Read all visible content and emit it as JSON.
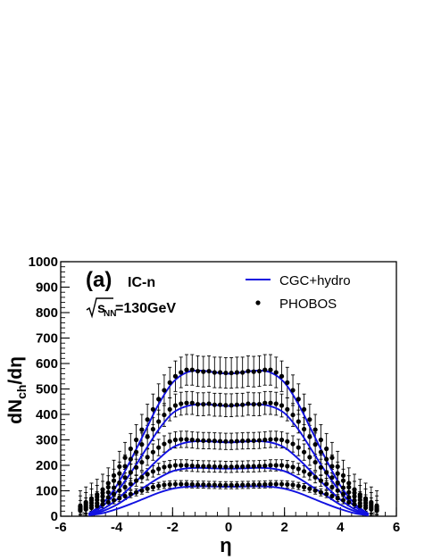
{
  "chart_data": {
    "type": "line",
    "xlabel": "η",
    "ylabel_main": "dN",
    "ylabel_sub": "ch",
    "ylabel_tail": "/dη",
    "xlim": [
      -6,
      6
    ],
    "ylim": [
      0,
      1000
    ],
    "x_ticks": [
      -6,
      -4,
      -2,
      0,
      2,
      4,
      6
    ],
    "x_tick_labels": [
      "-6",
      "-4",
      "-2",
      "0",
      "2",
      "4",
      "6"
    ],
    "y_ticks": [
      0,
      100,
      200,
      300,
      400,
      500,
      600,
      700,
      800,
      900,
      1000
    ],
    "y_tick_labels": [
      "0",
      "100",
      "200",
      "300",
      "400",
      "500",
      "600",
      "700",
      "800",
      "900",
      "1000"
    ],
    "panel_label": "(a)",
    "ic_label": "IC-n",
    "energy_label": {
      "s": "s",
      "sub": "NN",
      "value": "=130GeV"
    },
    "legend": {
      "position": "top-right",
      "items": [
        {
          "name": "CGC+hydro",
          "kind": "line",
          "color": "#1010e0"
        },
        {
          "name": "PHOBOS",
          "kind": "marker",
          "color": "#000000"
        }
      ]
    },
    "series": [
      {
        "name": "CGC+hydro",
        "centrality_index": 0,
        "eta": [
          -5.0,
          -4.5,
          -4.0,
          -3.5,
          -3.0,
          -2.5,
          -2.0,
          -1.5,
          -1.0,
          -0.5,
          0.0,
          0.5,
          1.0,
          1.5,
          2.0,
          2.5,
          3.0,
          3.5,
          4.0,
          4.5,
          5.0
        ],
        "values": [
          10,
          50,
          120,
          220,
          330,
          440,
          525,
          565,
          572,
          565,
          560,
          565,
          572,
          565,
          525,
          440,
          330,
          220,
          120,
          50,
          10
        ]
      },
      {
        "name": "CGC+hydro",
        "centrality_index": 1,
        "eta": [
          -5.0,
          -4.5,
          -4.0,
          -3.5,
          -3.0,
          -2.5,
          -2.0,
          -1.5,
          -1.0,
          -0.5,
          0.0,
          0.5,
          1.0,
          1.5,
          2.0,
          2.5,
          3.0,
          3.5,
          4.0,
          4.5,
          5.0
        ],
        "values": [
          8,
          40,
          95,
          170,
          255,
          340,
          405,
          432,
          440,
          437,
          433,
          437,
          440,
          432,
          405,
          340,
          255,
          170,
          95,
          40,
          8
        ]
      },
      {
        "name": "CGC+hydro",
        "centrality_index": 2,
        "eta": [
          -5.0,
          -4.5,
          -4.0,
          -3.5,
          -3.0,
          -2.5,
          -2.0,
          -1.5,
          -1.0,
          -0.5,
          0.0,
          0.5,
          1.0,
          1.5,
          2.0,
          2.5,
          3.0,
          3.5,
          4.0,
          4.5,
          5.0
        ],
        "values": [
          6,
          28,
          65,
          115,
          170,
          225,
          270,
          290,
          295,
          293,
          290,
          293,
          295,
          290,
          270,
          225,
          170,
          115,
          65,
          28,
          6
        ]
      },
      {
        "name": "CGC+hydro",
        "centrality_index": 3,
        "eta": [
          -5.0,
          -4.5,
          -4.0,
          -3.5,
          -3.0,
          -2.5,
          -2.0,
          -1.5,
          -1.0,
          -0.5,
          0.0,
          0.5,
          1.0,
          1.5,
          2.0,
          2.5,
          3.0,
          3.5,
          4.0,
          4.5,
          5.0
        ],
        "values": [
          4,
          20,
          45,
          80,
          115,
          150,
          177,
          188,
          190,
          188,
          187,
          188,
          190,
          188,
          177,
          150,
          115,
          80,
          45,
          20,
          4
        ]
      },
      {
        "name": "CGC+hydro",
        "centrality_index": 4,
        "eta": [
          -5.0,
          -4.5,
          -4.0,
          -3.5,
          -3.0,
          -2.5,
          -2.0,
          -1.5,
          -1.0,
          -0.5,
          0.0,
          0.5,
          1.0,
          1.5,
          2.0,
          2.5,
          3.0,
          3.5,
          4.0,
          4.5,
          5.0
        ],
        "values": [
          3,
          12,
          28,
          48,
          70,
          92,
          108,
          116,
          118,
          117,
          116,
          117,
          118,
          116,
          108,
          92,
          70,
          48,
          28,
          12,
          3
        ]
      }
    ],
    "phobos": {
      "eta": [
        -5.3,
        -5.1,
        -4.9,
        -4.7,
        -4.5,
        -4.3,
        -4.1,
        -3.9,
        -3.7,
        -3.5,
        -3.3,
        -3.1,
        -2.9,
        -2.7,
        -2.5,
        -2.3,
        -2.1,
        -1.9,
        -1.7,
        -1.5,
        -1.3,
        -1.1,
        -0.9,
        -0.7,
        -0.5,
        -0.3,
        -0.1,
        0.1,
        0.3,
        0.5,
        0.7,
        0.9,
        1.1,
        1.3,
        1.5,
        1.7,
        1.9,
        2.1,
        2.3,
        2.5,
        2.7,
        2.9,
        3.1,
        3.3,
        3.5,
        3.7,
        3.9,
        4.1,
        4.3,
        4.5,
        4.7,
        4.9,
        5.1,
        5.3
      ],
      "sets": [
        {
          "values": [
            40,
            55,
            70,
            85,
            105,
            130,
            160,
            195,
            230,
            265,
            300,
            340,
            380,
            420,
            460,
            495,
            525,
            550,
            565,
            575,
            575,
            570,
            568,
            570,
            565,
            565,
            563,
            563,
            565,
            565,
            570,
            568,
            570,
            575,
            575,
            565,
            550,
            525,
            495,
            460,
            420,
            380,
            340,
            300,
            265,
            230,
            195,
            160,
            130,
            105,
            85,
            70,
            55,
            40
          ],
          "err": 60
        },
        {
          "values": [
            35,
            48,
            62,
            76,
            92,
            114,
            140,
            168,
            196,
            224,
            252,
            282,
            312,
            342,
            372,
            398,
            420,
            435,
            442,
            445,
            445,
            440,
            440,
            442,
            438,
            438,
            436,
            436,
            438,
            438,
            442,
            440,
            440,
            445,
            445,
            442,
            435,
            420,
            398,
            372,
            342,
            312,
            282,
            252,
            224,
            196,
            168,
            140,
            114,
            92,
            76,
            62,
            48,
            35
          ],
          "err": 45
        },
        {
          "values": [
            30,
            40,
            52,
            64,
            78,
            94,
            112,
            132,
            152,
            172,
            192,
            212,
            232,
            252,
            270,
            284,
            294,
            300,
            302,
            302,
            300,
            298,
            297,
            297,
            296,
            295,
            294,
            294,
            295,
            296,
            297,
            297,
            298,
            300,
            302,
            302,
            300,
            294,
            284,
            270,
            252,
            232,
            212,
            192,
            172,
            152,
            132,
            112,
            94,
            78,
            64,
            52,
            40,
            30
          ],
          "err": 32
        },
        {
          "values": [
            26,
            33,
            42,
            51,
            62,
            74,
            87,
            101,
            114,
            127,
            140,
            153,
            165,
            176,
            186,
            193,
            197,
            200,
            200,
            200,
            198,
            197,
            196,
            196,
            195,
            195,
            194,
            194,
            195,
            195,
            196,
            196,
            197,
            198,
            200,
            200,
            200,
            197,
            193,
            186,
            176,
            165,
            153,
            140,
            127,
            114,
            101,
            87,
            74,
            62,
            51,
            42,
            33,
            26
          ],
          "err": 22
        },
        {
          "values": [
            22,
            27,
            33,
            40,
            47,
            55,
            63,
            71,
            79,
            87,
            94,
            101,
            108,
            114,
            119,
            123,
            125,
            126,
            126,
            126,
            125,
            124,
            124,
            123,
            123,
            122,
            122,
            122,
            122,
            123,
            123,
            124,
            124,
            125,
            126,
            126,
            126,
            125,
            123,
            119,
            114,
            108,
            101,
            94,
            87,
            79,
            71,
            63,
            55,
            47,
            40,
            33,
            27,
            22
          ],
          "err": 14
        }
      ]
    }
  }
}
